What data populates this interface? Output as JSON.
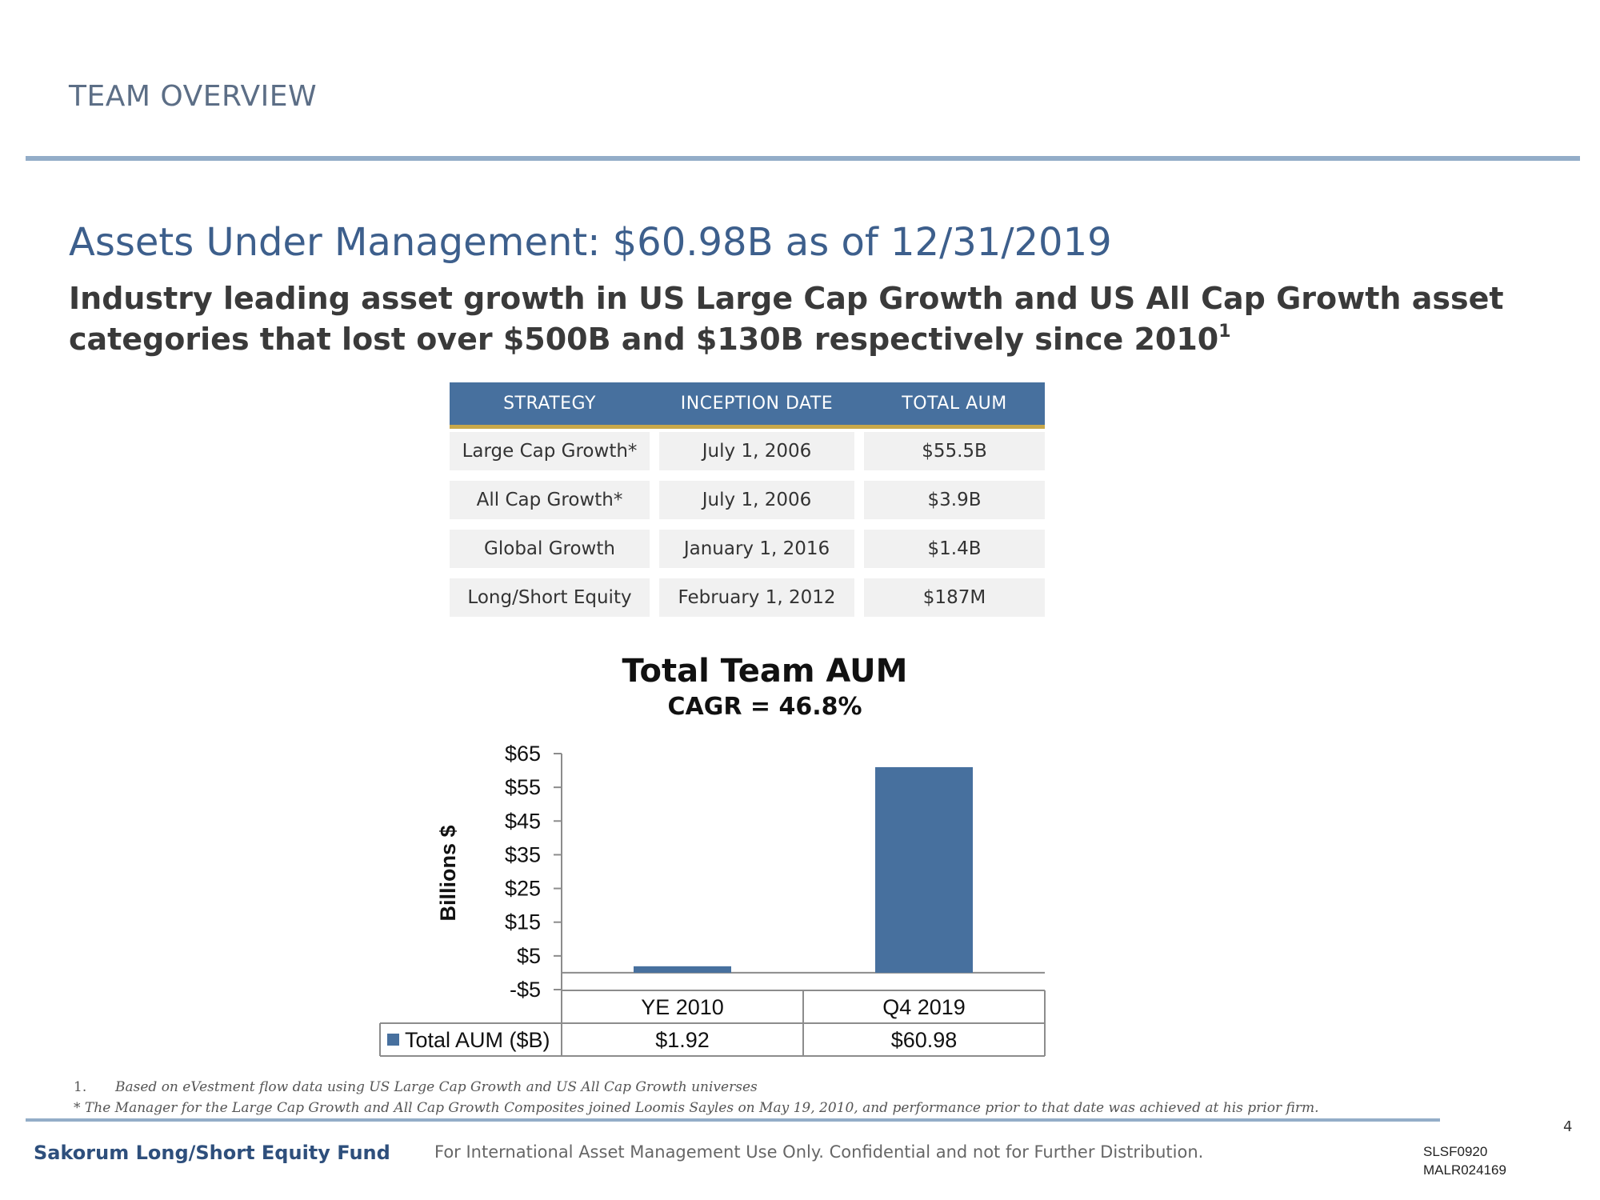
{
  "header": {
    "section_title": "TEAM OVERVIEW"
  },
  "main": {
    "title": "Assets Under Management: $60.98B as of 12/31/2019",
    "subtitle": "Industry leading asset growth in US Large Cap Growth and US All Cap Growth asset categories that lost over $500B and $130B respectively since 2010",
    "subtitle_footnote_ref": "1"
  },
  "strategy_table": {
    "headers": [
      "STRATEGY",
      "INCEPTION DATE",
      "TOTAL AUM"
    ],
    "rows": [
      [
        "Large Cap Growth*",
        "July 1, 2006",
        "$55.5B"
      ],
      [
        "All Cap Growth*",
        "July 1, 2006",
        "$3.9B"
      ],
      [
        "Global Growth",
        "January 1, 2016",
        "$1.4B"
      ],
      [
        "Long/Short Equity",
        "February 1, 2012",
        "$187M"
      ]
    ]
  },
  "chart_data": {
    "type": "bar",
    "title": "Total Team AUM",
    "subtitle": "CAGR = 46.8%",
    "ylabel": "Billions $",
    "xlabel": "",
    "ylim": [
      -5,
      65
    ],
    "yticks": [
      -5,
      5,
      15,
      25,
      35,
      45,
      55,
      65
    ],
    "ytick_labels": [
      "-$5",
      "$5",
      "$15",
      "$25",
      "$35",
      "$45",
      "$55",
      "$65"
    ],
    "categories": [
      "YE 2010",
      "Q4 2019"
    ],
    "series": [
      {
        "name": "Total AUM ($B)",
        "values": [
          1.92,
          60.98
        ],
        "value_labels": [
          "$1.92",
          "$60.98"
        ],
        "color": "#47709e"
      }
    ],
    "grid": false,
    "legend": "data-table-left"
  },
  "footnotes": {
    "note1_number": "1.",
    "note1_text": "Based on eVestment flow data using US Large Cap Growth and US All Cap Growth universes",
    "note2": "* The Manager for the Large Cap Growth and All Cap Growth  Composites joined Loomis Sayles on May 19, 2010, and performance prior to that date was achieved at his prior firm."
  },
  "footer": {
    "page_number": "4",
    "fund_name": "Sakorum Long/Short Equity Fund",
    "disclaimer": "For International Asset Management Use Only. Confidential and not for Further Distribution.",
    "code_1": "SLSF0920",
    "code_2": "MALR024169"
  }
}
